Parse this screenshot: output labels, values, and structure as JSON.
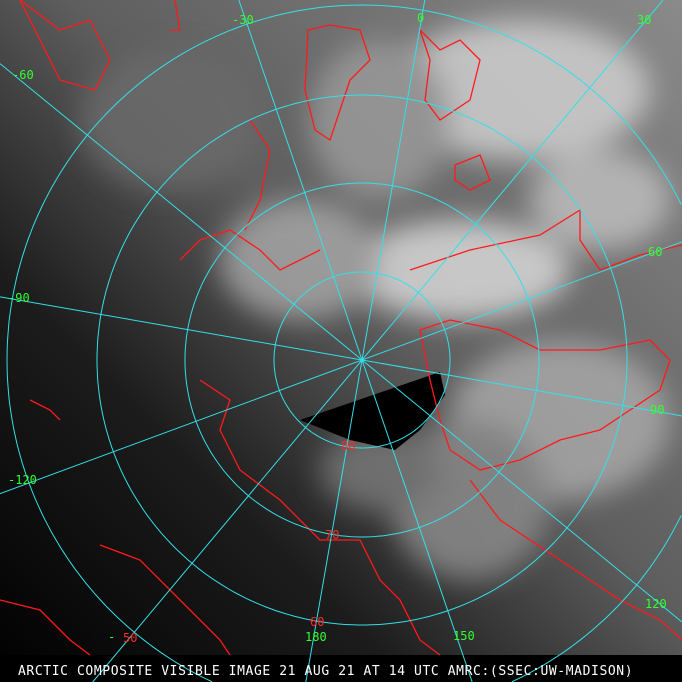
{
  "caption": "ARCTIC COMPOSITE VISIBLE IMAGE 21 AUG 21 AT 14 UTC AMRC:(SSEC:UW-MADISON)",
  "colors": {
    "grid": "#33e0e8",
    "coast": "#ff1a1a",
    "longitude_label": "#33ff33",
    "latitude_label": "#ff2a2a"
  },
  "longitude_labels": [
    "-30",
    "0",
    "30",
    "60",
    "90",
    "120",
    "150",
    "180",
    "-120",
    "-90",
    "-60",
    "-"
  ],
  "latitude_labels": [
    "80",
    "70",
    "60",
    "50"
  ]
}
